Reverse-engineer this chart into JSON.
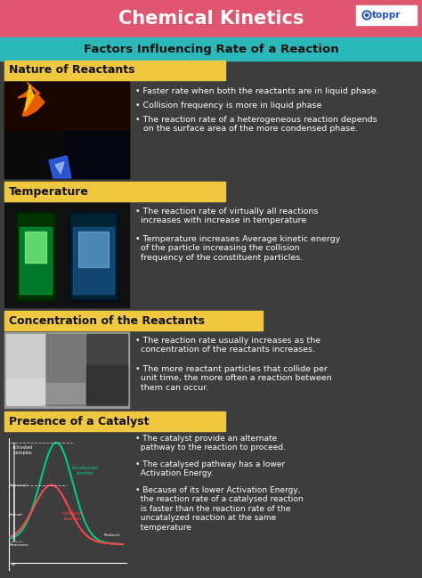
{
  "title": "Chemical Kinetics",
  "subtitle": "Factors Influencing Rate of a Reaction",
  "bg_color": "#3d3d3d",
  "header_bg": "#e05570",
  "subheader_bg": "#2ab8b8",
  "label_bg": "#f0c840",
  "title_color": "#ffffff",
  "subtitle_color": "#111111",
  "label_text_color": "#111111",
  "body_text_color": "#ffffff",
  "toppr_bg": "#ffffff",
  "toppr_text": "#2255cc",
  "sections": [
    {
      "label": "Nature of Reactants",
      "bullets": [
        "• Faster rate when both the reactants are in liquid phase.",
        "• Collision frequency is more in liquid phase",
        "• The reaction rate of a heterogeneous reaction depends\n   on the surface area of the more condensed phase."
      ],
      "img_color": "#1a1a1a"
    },
    {
      "label": "Temperature",
      "bullets": [
        "• The reaction rate of virtually all reactions\n  increases with increase in temperature",
        "• Temperature increases Average kinetic energy\n  of the particle increasing the collision\n  frequency of the constituent particles."
      ],
      "img_color": "#1a1a1a"
    },
    {
      "label": "Concentration of the Reactants",
      "bullets": [
        "• The reaction rate usually increases as the\n  concentration of the reactants increases.",
        "• The more reactant particles that collide per\n  unit time, the more often a reaction between\n  them can occur."
      ],
      "img_color": "#888888"
    },
    {
      "label": "Presence of a Catalyst",
      "bullets": [
        "• The catalyst provide an alternate\n  pathway to the reaction to proceed.",
        "• The catalysed pathway has a lower\n  Activation Energy.",
        "• Because of its lower Activation Energy,\n  the reaction rate of a catalysed reaction\n  is faster than the reaction rate of the\n  uncatalyzed reaction at the same\n  temperature"
      ],
      "img_color": "#1a1a1a"
    }
  ]
}
